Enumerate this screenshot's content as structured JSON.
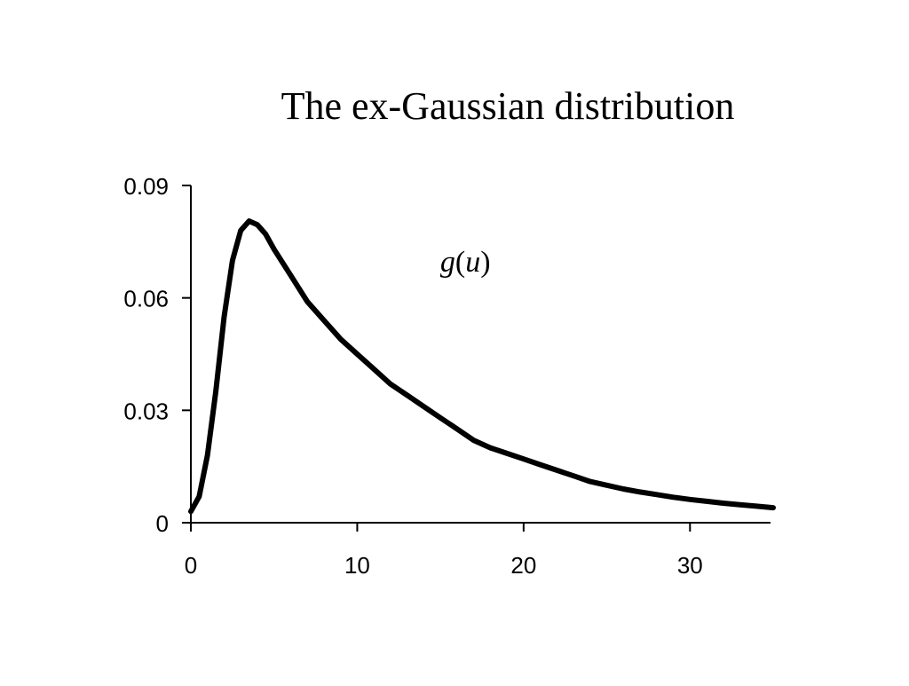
{
  "chart_data": {
    "type": "line",
    "title": "The ex-Gaussian distribution",
    "xlabel": "",
    "ylabel": "",
    "xlim": [
      0,
      35
    ],
    "ylim": [
      0,
      0.09
    ],
    "xticks": [
      0,
      10,
      20,
      30
    ],
    "xtick_labels": [
      "0",
      "10",
      "20",
      "30"
    ],
    "yticks": [
      0,
      0.03,
      0.06,
      0.09
    ],
    "ytick_labels": [
      "0",
      "0.03",
      "0.06",
      "0.09"
    ],
    "grid": false,
    "annotation": {
      "func": "g",
      "paren_open": "(",
      "var": "u",
      "paren_close": ")",
      "x": 16.5,
      "y": 0.067
    },
    "series": [
      {
        "color": "#000000",
        "x": [
          0,
          0.5,
          1,
          1.5,
          2,
          2.5,
          3,
          3.5,
          4,
          4.5,
          5,
          6,
          7,
          8,
          9,
          10,
          11,
          12,
          13,
          14,
          15,
          16,
          17,
          18,
          19,
          20,
          21,
          22,
          23,
          24,
          25,
          26,
          27,
          28,
          29,
          30,
          31,
          32,
          33,
          34,
          35
        ],
        "values": [
          0.003,
          0.007,
          0.018,
          0.035,
          0.055,
          0.07,
          0.078,
          0.0805,
          0.0795,
          0.077,
          0.073,
          0.066,
          0.059,
          0.054,
          0.049,
          0.045,
          0.041,
          0.037,
          0.034,
          0.031,
          0.028,
          0.025,
          0.022,
          0.02,
          0.0185,
          0.017,
          0.0155,
          0.014,
          0.0125,
          0.011,
          0.01,
          0.009,
          0.0082,
          0.0075,
          0.0068,
          0.0062,
          0.0057,
          0.0052,
          0.0048,
          0.0044,
          0.004
        ]
      }
    ]
  }
}
